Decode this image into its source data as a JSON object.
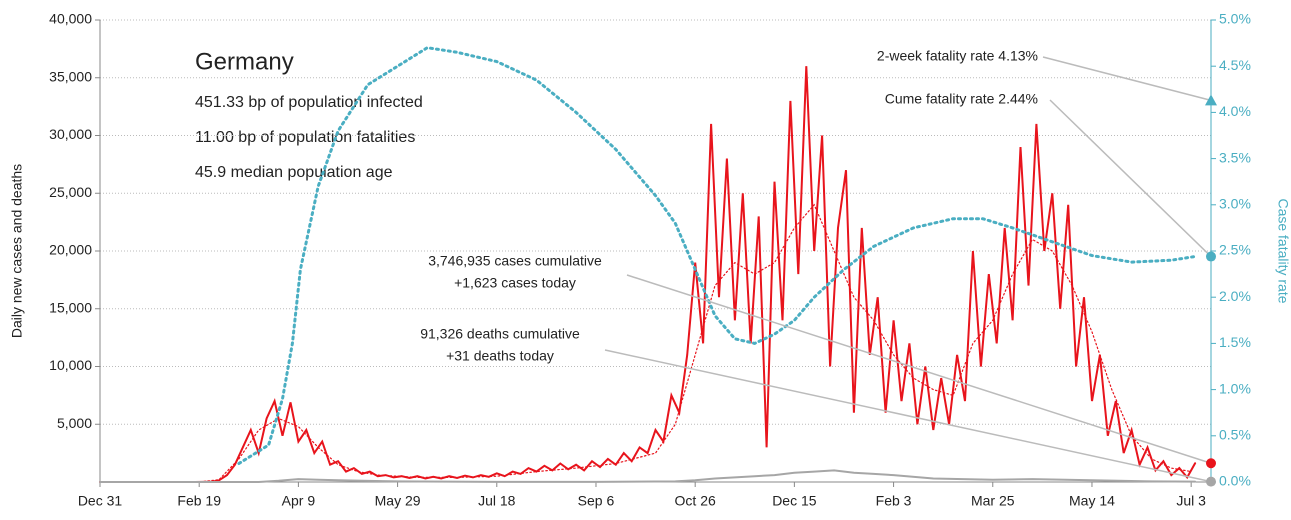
{
  "chart_data": {
    "type": "line",
    "title": "Germany",
    "info": [
      "451.33 bp of population infected",
      "11.00 bp of population fatalities",
      "45.9 median population age"
    ],
    "ylabel": "Daily new cases and deaths",
    "y2label": "Case fatality rate",
    "xlim": [
      0,
      560
    ],
    "xticks": [
      {
        "value": 0,
        "label": "Dec 31"
      },
      {
        "value": 50,
        "label": "Feb 19"
      },
      {
        "value": 100,
        "label": "Apr 9"
      },
      {
        "value": 150,
        "label": "May 29"
      },
      {
        "value": 200,
        "label": "Jul 18"
      },
      {
        "value": 250,
        "label": "Sep 6"
      },
      {
        "value": 300,
        "label": "Oct 26"
      },
      {
        "value": 350,
        "label": "Dec 15"
      },
      {
        "value": 400,
        "label": "Feb 3"
      },
      {
        "value": 450,
        "label": "Mar 25"
      },
      {
        "value": 500,
        "label": "May 14"
      },
      {
        "value": 550,
        "label": "Jul 3"
      }
    ],
    "ylim": [
      0,
      40000
    ],
    "yticks": [
      {
        "value": 5000,
        "label": "5,000"
      },
      {
        "value": 10000,
        "label": "10,000"
      },
      {
        "value": 15000,
        "label": "15,000"
      },
      {
        "value": 20000,
        "label": "20,000"
      },
      {
        "value": 25000,
        "label": "25,000"
      },
      {
        "value": 30000,
        "label": "30,000"
      },
      {
        "value": 35000,
        "label": "35,000"
      },
      {
        "value": 40000,
        "label": "40,000"
      }
    ],
    "y2lim": [
      0,
      5
    ],
    "y2ticks": [
      {
        "value": 0,
        "label": "0.0%"
      },
      {
        "value": 0.5,
        "label": "0.5%"
      },
      {
        "value": 1,
        "label": "1.0%"
      },
      {
        "value": 1.5,
        "label": "1.5%"
      },
      {
        "value": 2,
        "label": "2.0%"
      },
      {
        "value": 2.5,
        "label": "2.5%"
      },
      {
        "value": 3,
        "label": "3.0%"
      },
      {
        "value": 3.5,
        "label": "3.5%"
      },
      {
        "value": 4,
        "label": "4.0%"
      },
      {
        "value": 4.5,
        "label": "4.5%"
      },
      {
        "value": 5,
        "label": "5.0%"
      }
    ],
    "grid": true,
    "series": [
      {
        "color": "#e8141c",
        "style": "solid",
        "x": [
          0,
          4,
          8,
          12,
          16,
          20,
          24,
          28,
          32,
          36,
          40,
          44,
          48,
          52,
          56,
          60,
          64,
          68,
          72,
          76,
          80,
          84,
          88,
          92,
          96,
          100,
          104,
          108,
          112,
          116,
          120,
          124,
          128,
          132,
          136,
          140,
          144,
          148,
          152,
          156,
          160,
          164,
          168,
          172,
          176,
          180,
          184,
          188,
          192,
          196,
          200,
          204,
          208,
          212,
          216,
          220,
          224,
          228,
          232,
          236,
          240,
          244,
          248,
          252,
          256,
          260,
          264,
          268,
          272,
          276,
          280,
          284,
          288,
          292,
          296,
          300,
          304,
          308,
          312,
          316,
          320,
          324,
          328,
          332,
          336,
          340,
          344,
          348,
          352,
          356,
          360,
          364,
          368,
          372,
          376,
          380,
          384,
          388,
          392,
          396,
          400,
          404,
          408,
          412,
          416,
          420,
          424,
          428,
          432,
          436,
          440,
          444,
          448,
          452,
          456,
          460,
          464,
          468,
          472,
          476,
          480,
          484,
          488,
          492,
          496,
          500,
          504,
          508,
          512,
          516,
          520,
          524,
          528,
          532,
          536,
          540,
          544,
          548,
          552
        ],
        "values": [
          0,
          0,
          0,
          0,
          0,
          0,
          0,
          0,
          0,
          0,
          0,
          0,
          0,
          10,
          20,
          150,
          600,
          1500,
          3000,
          4500,
          2500,
          5500,
          7000,
          4000,
          6900,
          3500,
          4500,
          2500,
          3500,
          1500,
          1800,
          900,
          1200,
          700,
          900,
          500,
          600,
          400,
          500,
          350,
          500,
          300,
          450,
          300,
          500,
          350,
          550,
          400,
          600,
          450,
          750,
          500,
          900,
          700,
          1200,
          900,
          1400,
          1000,
          1600,
          1100,
          1500,
          1000,
          1800,
          1300,
          2000,
          1500,
          2500,
          1800,
          3000,
          2500,
          4500,
          3500,
          7500,
          6000,
          11000,
          19000,
          12000,
          31000,
          16000,
          28000,
          14000,
          25000,
          12000,
          23000,
          3000,
          26000,
          14000,
          33000,
          18000,
          36000,
          20000,
          30000,
          10000,
          22000,
          27000,
          6000,
          22000,
          11000,
          16000,
          6000,
          14000,
          7000,
          12000,
          5000,
          10000,
          4500,
          9000,
          5000,
          11000,
          7000,
          20000,
          10000,
          18000,
          12000,
          22000,
          14000,
          29000,
          17000,
          31000,
          20000,
          25000,
          15000,
          24000,
          10000,
          16000,
          7000,
          11000,
          4000,
          7000,
          2500,
          4500,
          1500,
          3000,
          1000,
          1800,
          600,
          1200,
          400,
          1623
        ]
      },
      {
        "color": "#e8141c",
        "style": "dotted",
        "x": [
          0,
          50,
          60,
          70,
          80,
          90,
          100,
          110,
          120,
          130,
          140,
          160,
          180,
          200,
          220,
          240,
          260,
          280,
          290,
          300,
          310,
          320,
          330,
          340,
          350,
          360,
          370,
          380,
          390,
          400,
          410,
          420,
          430,
          440,
          450,
          460,
          470,
          480,
          490,
          500,
          510,
          520,
          530,
          540,
          550
        ],
        "values": [
          0,
          0,
          200,
          2000,
          4500,
          5500,
          4800,
          3000,
          1500,
          900,
          600,
          400,
          400,
          500,
          900,
          1200,
          1600,
          2500,
          5000,
          11000,
          17000,
          19000,
          18000,
          19000,
          22000,
          24000,
          20000,
          16000,
          14000,
          11000,
          9000,
          8000,
          7500,
          12000,
          14000,
          18000,
          21000,
          20000,
          17000,
          13000,
          8000,
          4000,
          2000,
          1200,
          900
        ]
      },
      {
        "color": "#a6a6a6",
        "style": "solid",
        "x": [
          0,
          80,
          90,
          100,
          110,
          120,
          150,
          200,
          250,
          290,
          300,
          310,
          320,
          330,
          340,
          350,
          360,
          370,
          380,
          390,
          400,
          420,
          450,
          470,
          500,
          530,
          552
        ],
        "values": [
          0,
          0,
          100,
          250,
          200,
          150,
          50,
          10,
          10,
          50,
          150,
          300,
          400,
          500,
          600,
          800,
          900,
          1000,
          800,
          700,
          600,
          300,
          200,
          250,
          150,
          50,
          31
        ]
      },
      {
        "color": "#4aaec2",
        "style": "dotted",
        "axis": "y2",
        "x": [
          70,
          85,
          92,
          97,
          101,
          110,
          120,
          135,
          150,
          165,
          180,
          200,
          220,
          240,
          260,
          280,
          290,
          300,
          310,
          320,
          330,
          340,
          350,
          360,
          375,
          390,
          410,
          430,
          445,
          460,
          480,
          500,
          520,
          540,
          552
        ],
        "values": [
          0.2,
          0.4,
          0.9,
          1.5,
          2.3,
          3.2,
          3.8,
          4.3,
          4.5,
          4.7,
          4.65,
          4.55,
          4.35,
          4.0,
          3.6,
          3.1,
          2.8,
          2.3,
          1.8,
          1.55,
          1.5,
          1.6,
          1.75,
          2.0,
          2.3,
          2.55,
          2.75,
          2.85,
          2.85,
          2.75,
          2.6,
          2.45,
          2.38,
          2.4,
          2.44
        ]
      }
    ],
    "markers": [
      {
        "label": "2-week fatality rate 4.13%",
        "value": 4.13,
        "axis": "y2",
        "color": "#4aaec2",
        "shape": "triangle"
      },
      {
        "label": "Cume fatality rate 2.44%",
        "value": 2.44,
        "axis": "y2",
        "color": "#4aaec2",
        "shape": "circle"
      },
      {
        "label": [
          "3,746,935 cases cumulative",
          "+1,623 cases today"
        ],
        "value": 1623,
        "color": "#e8141c",
        "shape": "circle"
      },
      {
        "label": [
          "91,326 deaths cumulative",
          "+31 deaths today"
        ],
        "value": 31,
        "color": "#a6a6a6",
        "shape": "circle"
      }
    ]
  }
}
